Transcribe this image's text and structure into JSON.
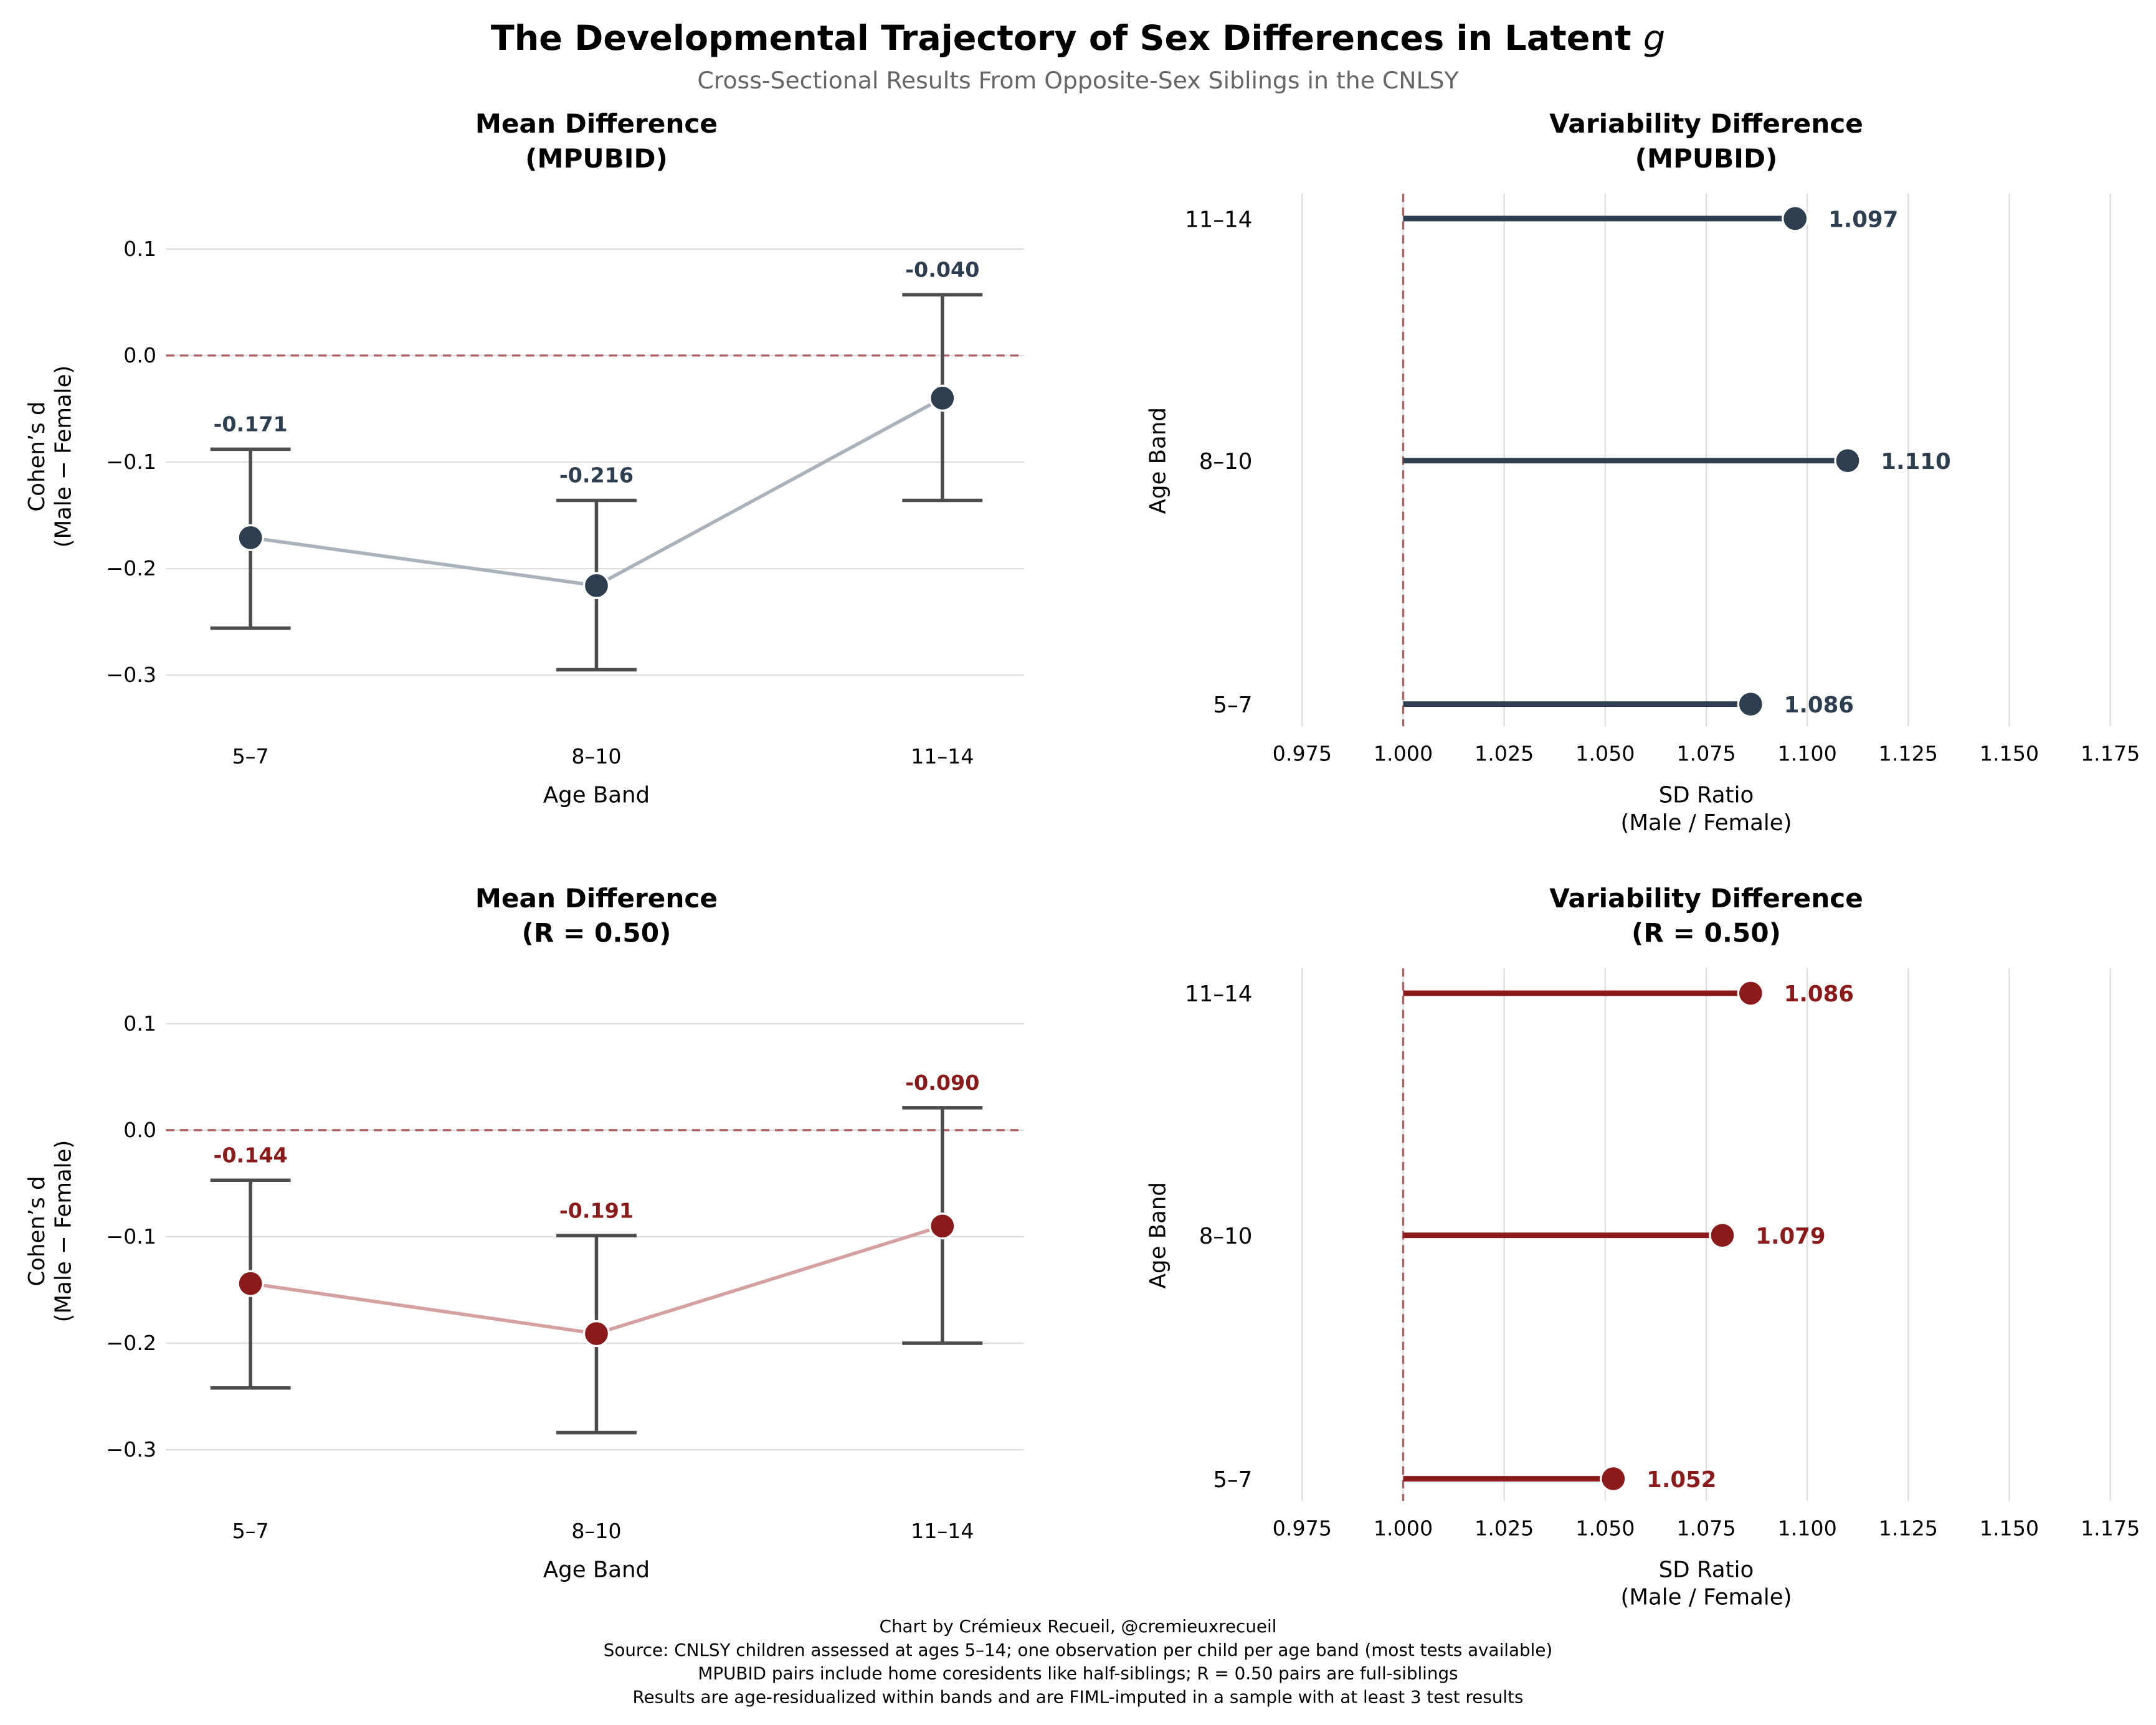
{
  "title": "The Developmental Trajectory of Sex Differences in Latent",
  "title_italic": "g",
  "subtitle": "Cross-Sectional Results From Opposite-Sex Siblings in the CNLSY",
  "footer": [
    "Chart by Crémieux Recueil, @cremieuxrecueil",
    "Source: CNLSY children assessed at ages 5–14; one observation per child per age band (most tests available)",
    "MPUBID pairs include home coresidents like half-siblings; R = 0.50 pairs are full-siblings",
    "Results are age-residualized within bands and are FIML-imputed in a sample with at least 3 test results"
  ],
  "colors": {
    "mpubid": "#2c3e50",
    "r050": "#8b1a1a",
    "mpubid_line": "#aab2bb",
    "r050_line": "#d4a0a0",
    "ref": "#b06060",
    "err": "#4d4d4d",
    "grid": "#dddddd"
  },
  "chart_data": [
    {
      "type": "line",
      "title": [
        "Mean Difference",
        "(MPUBID)"
      ],
      "xlabel": "Age Band",
      "ylabel": [
        "Cohen’s d",
        "(Male − Female)"
      ],
      "categories": [
        "5–7",
        "8–10",
        "11–14"
      ],
      "values": [
        -0.171,
        -0.216,
        -0.04
      ],
      "value_labels": [
        "-0.171",
        "-0.216",
        "-0.040"
      ],
      "ci_upper": [
        -0.088,
        -0.136,
        0.057
      ],
      "ci_lower": [
        -0.256,
        -0.295,
        -0.136
      ],
      "yticks": [
        0.1,
        0.0,
        -0.1,
        -0.2,
        -0.3
      ],
      "ytick_labels": [
        "0.1",
        "0.0",
        "−0.1",
        "−0.2",
        "−0.3"
      ],
      "reference_line": 0,
      "series": "mpubid"
    },
    {
      "type": "lollipop",
      "title": [
        "Variability Difference",
        "(MPUBID)"
      ],
      "xlabel": [
        "SD Ratio",
        "(Male / Female)"
      ],
      "ylabel": "Age Band",
      "categories": [
        "11–14",
        "8–10",
        "5–7"
      ],
      "values": [
        1.097,
        1.11,
        1.086
      ],
      "value_labels": [
        "1.097",
        "1.110",
        "1.086"
      ],
      "xticks": [
        0.975,
        1.0,
        1.025,
        1.05,
        1.075,
        1.1,
        1.125,
        1.15,
        1.175
      ],
      "xtick_labels": [
        "0.975",
        "1.000",
        "1.025",
        "1.050",
        "1.075",
        "1.100",
        "1.125",
        "1.150",
        "1.175"
      ],
      "reference_line": 1.0,
      "series": "mpubid"
    },
    {
      "type": "line",
      "title": [
        "Mean Difference",
        "(R = 0.50)"
      ],
      "xlabel": "Age Band",
      "ylabel": [
        "Cohen’s d",
        "(Male − Female)"
      ],
      "categories": [
        "5–7",
        "8–10",
        "11–14"
      ],
      "values": [
        -0.144,
        -0.191,
        -0.09
      ],
      "value_labels": [
        "-0.144",
        "-0.191",
        "-0.090"
      ],
      "ci_upper": [
        -0.047,
        -0.099,
        0.021
      ],
      "ci_lower": [
        -0.242,
        -0.284,
        -0.2
      ],
      "yticks": [
        0.1,
        0.0,
        -0.1,
        -0.2,
        -0.3
      ],
      "ytick_labels": [
        "0.1",
        "0.0",
        "−0.1",
        "−0.2",
        "−0.3"
      ],
      "reference_line": 0,
      "series": "r050"
    },
    {
      "type": "lollipop",
      "title": [
        "Variability Difference",
        "(R = 0.50)"
      ],
      "xlabel": [
        "SD Ratio",
        "(Male / Female)"
      ],
      "ylabel": "Age Band",
      "categories": [
        "11–14",
        "8–10",
        "5–7"
      ],
      "values": [
        1.086,
        1.079,
        1.052
      ],
      "value_labels": [
        "1.086",
        "1.079",
        "1.052"
      ],
      "xticks": [
        0.975,
        1.0,
        1.025,
        1.05,
        1.075,
        1.1,
        1.125,
        1.15,
        1.175
      ],
      "xtick_labels": [
        "0.975",
        "1.000",
        "1.025",
        "1.050",
        "1.075",
        "1.100",
        "1.125",
        "1.150",
        "1.175"
      ],
      "reference_line": 1.0,
      "series": "r050"
    }
  ]
}
